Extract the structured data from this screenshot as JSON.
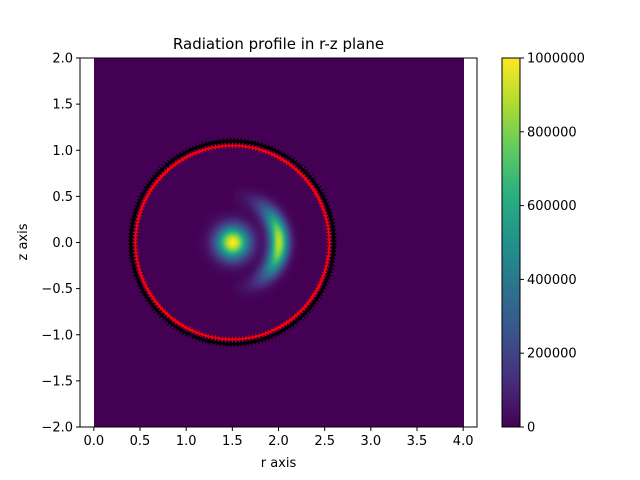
{
  "chart_data": {
    "type": "heatmap",
    "title": "Radiation profile in r-z plane",
    "xlabel": "r axis",
    "ylabel": "z axis",
    "xlim": [
      -0.15,
      4.15
    ],
    "ylim": [
      -2.0,
      2.0
    ],
    "data_extent": {
      "r": [
        0.0,
        4.0
      ],
      "z": [
        -2.0,
        2.0
      ]
    },
    "x_ticks": [
      "0.0",
      "0.5",
      "1.0",
      "1.5",
      "2.0",
      "2.5",
      "3.0",
      "3.5",
      "4.0"
    ],
    "x_tick_values": [
      0.0,
      0.5,
      1.0,
      1.5,
      2.0,
      2.5,
      3.0,
      3.5,
      4.0
    ],
    "y_ticks": [
      "2.0",
      "1.5",
      "1.0",
      "0.5",
      "0.0",
      "−0.5",
      "−1.0",
      "−1.5",
      "−2.0"
    ],
    "y_tick_values": [
      2.0,
      1.5,
      1.0,
      0.5,
      0.0,
      -0.5,
      -1.0,
      -1.5,
      -2.0
    ],
    "colormap": "viridis",
    "vmin": 0,
    "vmax": 1000000,
    "colorbar_ticks": [
      "1000000",
      "800000",
      "600000",
      "400000",
      "200000",
      "0"
    ],
    "colorbar_tick_values": [
      1000000,
      800000,
      600000,
      400000,
      200000,
      0
    ],
    "features": [
      {
        "kind": "gaussian_spot",
        "r": 1.5,
        "z": 0.0,
        "peak": 1000000,
        "sigma_r": 0.12,
        "sigma_z": 0.12
      },
      {
        "kind": "crescent",
        "r_center": 1.5,
        "z_center": 0.0,
        "radius": 0.5,
        "peak": 900000,
        "angular_width": 0.55,
        "radial_width": 0.07
      }
    ],
    "overlays": [
      {
        "kind": "circle",
        "center": [
          1.5,
          0.0
        ],
        "radius": 1.1,
        "marker": "x",
        "color": "#000000"
      },
      {
        "kind": "circle",
        "center": [
          1.5,
          0.0
        ],
        "radius": 1.05,
        "marker": "+",
        "color": "#ff0000"
      }
    ]
  }
}
